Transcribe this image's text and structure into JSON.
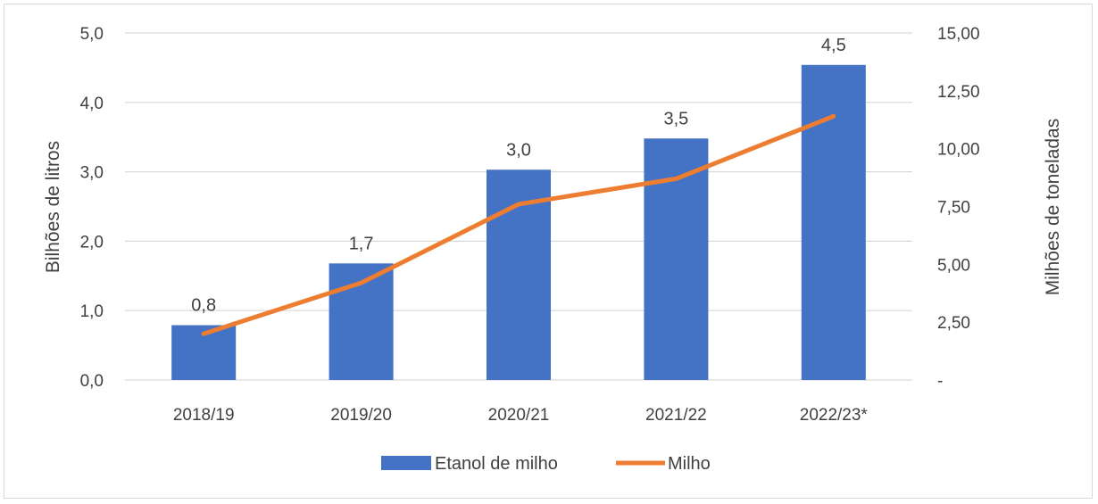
{
  "chart_data": {
    "type": "bar",
    "categories": [
      "2018/19",
      "2019/20",
      "2020/21",
      "2021/22",
      "2022/23*"
    ],
    "series": [
      {
        "name": "Etanol de milho",
        "type": "bar",
        "axis": "left",
        "values": [
          0.79,
          1.68,
          3.03,
          3.48,
          4.54
        ],
        "data_labels": [
          "0,8",
          "1,7",
          "3,0",
          "3,5",
          "4,5"
        ],
        "color": "#4472C4"
      },
      {
        "name": "Milho",
        "type": "line",
        "axis": "right",
        "values": [
          2.0,
          4.2,
          7.6,
          8.7,
          11.4
        ],
        "color": "#ED7D31"
      }
    ],
    "ylabel": "Bilhões de litros",
    "ylabel_right": "Milhões de toneladas",
    "ylim": [
      0,
      5
    ],
    "ylim_right": [
      0,
      15
    ],
    "yticks": [
      {
        "value": 0,
        "label": "0,0"
      },
      {
        "value": 1,
        "label": "1,0"
      },
      {
        "value": 2,
        "label": "2,0"
      },
      {
        "value": 3,
        "label": "3,0"
      },
      {
        "value": 4,
        "label": "4,0"
      },
      {
        "value": 5,
        "label": "5,0"
      }
    ],
    "yticks_right": [
      {
        "value": 0,
        "label": "-"
      },
      {
        "value": 2.5,
        "label": "2,50"
      },
      {
        "value": 5,
        "label": "5,00"
      },
      {
        "value": 7.5,
        "label": "7,50"
      },
      {
        "value": 10,
        "label": "10,00"
      },
      {
        "value": 12.5,
        "label": "12,50"
      },
      {
        "value": 15,
        "label": "15,00"
      }
    ],
    "grid": true,
    "legend": "bottom",
    "gridline_color": "#d9d9d9"
  }
}
